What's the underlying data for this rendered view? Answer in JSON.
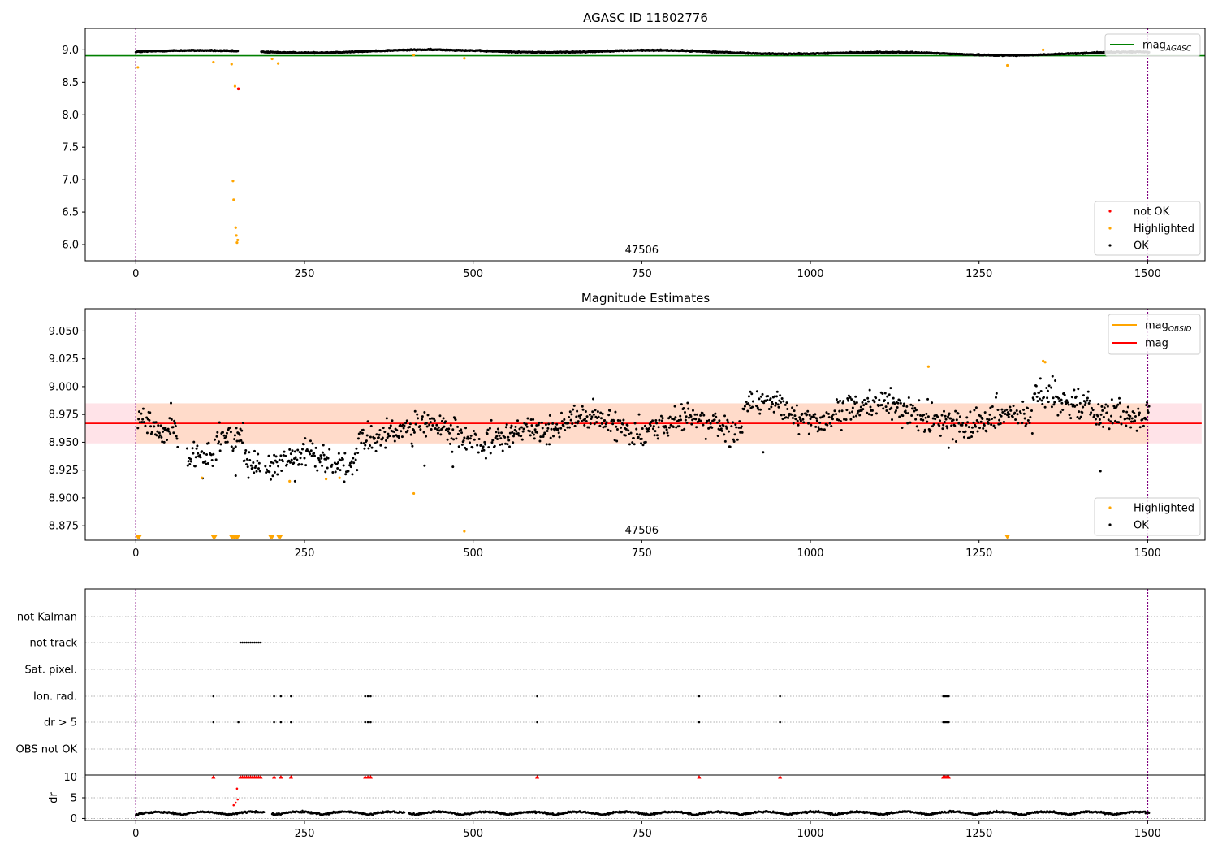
{
  "chart_data": [
    {
      "type": "scatter",
      "title": "AGASC ID 11802776",
      "xlim": [
        -75,
        1585
      ],
      "ylim": [
        5.75,
        9.33
      ],
      "xticks": [
        0,
        250,
        500,
        750,
        1000,
        1250,
        1500
      ],
      "yticks": [
        6.0,
        6.5,
        7.0,
        7.5,
        8.0,
        8.5,
        9.0
      ],
      "xtick_labels": [
        "0",
        "250",
        "500",
        "750",
        "1000",
        "1250",
        "1500"
      ],
      "ytick_labels": [
        "6.0",
        "6.5",
        "7.0",
        "7.5",
        "8.0",
        "8.5",
        "9.0"
      ],
      "annotation": "47506",
      "annotation_x": 750,
      "vlines": [
        0,
        1500
      ],
      "hline": {
        "name": "mag",
        "subscript": "AGASC",
        "y": 8.91,
        "color": "#008000"
      },
      "legend_lines": [
        {
          "name": "mag",
          "subscript": "AGASC",
          "color": "#008000"
        }
      ],
      "legend_points": [
        {
          "name": "not OK",
          "color": "#ff0000"
        },
        {
          "name": "Highlighted",
          "color": "#ffa500"
        },
        {
          "name": "OK",
          "color": "#000000"
        }
      ],
      "ok_points": {
        "x_range": [
          0,
          1502
        ],
        "gaps": [
          [
            152,
            185
          ]
        ],
        "y_base": 8.95,
        "y_trend": 0.04,
        "y_noise": 0.012
      },
      "highlighted_points": [
        [
          3,
          8.73
        ],
        [
          115,
          8.81
        ],
        [
          142,
          8.78
        ],
        [
          144,
          6.98
        ],
        [
          145,
          6.69
        ],
        [
          147,
          8.44
        ],
        [
          148,
          6.26
        ],
        [
          149,
          6.14
        ],
        [
          150,
          6.03
        ],
        [
          151,
          6.07
        ],
        [
          202,
          8.86
        ],
        [
          211,
          8.79
        ],
        [
          412,
          8.92
        ],
        [
          487,
          8.87
        ],
        [
          1292,
          8.76
        ],
        [
          1345,
          9.0
        ]
      ],
      "notok_points": [
        [
          152,
          8.4
        ]
      ],
      "legend_upper_loc": "upper right",
      "legend_lower_loc": "lower right"
    },
    {
      "type": "scatter",
      "title": "Magnitude Estimates",
      "xlim": [
        -75,
        1585
      ],
      "ylim": [
        8.862,
        9.07
      ],
      "xticks": [
        0,
        250,
        500,
        750,
        1000,
        1250,
        1500
      ],
      "yticks": [
        8.875,
        8.9,
        8.925,
        8.95,
        8.975,
        9.0,
        9.025,
        9.05
      ],
      "xtick_labels": [
        "0",
        "250",
        "500",
        "750",
        "1000",
        "1250",
        "1500"
      ],
      "ytick_labels": [
        "8.875",
        "8.900",
        "8.925",
        "8.950",
        "8.975",
        "9.000",
        "9.025",
        "9.050"
      ],
      "annotation": "47506",
      "annotation_x": 750,
      "vlines": [
        0,
        1500
      ],
      "mag_line": {
        "name": "mag",
        "y": 8.967,
        "color": "#ff0000"
      },
      "band_outer": {
        "y0": 8.949,
        "y1": 8.985,
        "x0": -75,
        "x1": 1580,
        "color": "#ffc0cb"
      },
      "band_inner": {
        "y0": 8.949,
        "y1": 8.985,
        "x0": 0,
        "x1": 1502,
        "color": "#ffd8c0"
      },
      "legend_lines": [
        {
          "name": "mag",
          "subscript": "OBSID",
          "color": "#ffa500"
        },
        {
          "name": "mag",
          "subscript": "",
          "color": "#ff0000"
        }
      ],
      "legend_points": [
        {
          "name": "Highlighted",
          "color": "#ffa500"
        },
        {
          "name": "OK",
          "color": "#000000"
        }
      ],
      "ok_points": {
        "x_range": [
          0,
          1502
        ],
        "gaps": [
          [
            70,
            95
          ],
          [
            184,
            196
          ]
        ]
      },
      "highlighted_points": [
        [
          98,
          8.918
        ],
        [
          228,
          8.915
        ],
        [
          282,
          8.917
        ],
        [
          302,
          8.918
        ],
        [
          412,
          8.904
        ],
        [
          487,
          8.87
        ],
        [
          1175,
          9.018
        ],
        [
          1345,
          9.023
        ],
        [
          1348,
          9.022
        ]
      ],
      "offscale_markers_x": [
        3,
        5,
        115,
        117,
        142,
        144,
        146,
        147,
        149,
        150,
        151,
        200,
        202,
        212,
        214,
        1292
      ],
      "legend_upper_loc": "upper right",
      "legend_lower_loc": "lower right"
    },
    {
      "type": "scatter",
      "xlim": [
        -75,
        1585
      ],
      "xticks": [
        0,
        250,
        500,
        750,
        1000,
        1250,
        1500
      ],
      "xtick_labels": [
        "0",
        "250",
        "500",
        "750",
        "1000",
        "1250",
        "1500"
      ],
      "flag_labels": [
        "not Kalman",
        "not track",
        "Sat. pixel.",
        "Ion. rad.",
        "dr > 5",
        "OBS not OK"
      ],
      "flags": {
        "not Kalman": [],
        "not track": [
          155,
          158,
          161,
          164,
          167,
          170,
          173,
          176,
          179,
          182,
          185
        ],
        "Sat. pixel.": [],
        "Ion. rad.": [
          115,
          205,
          215,
          230,
          340,
          344,
          348,
          595,
          835,
          955,
          1197,
          1199,
          1201,
          1203,
          1205
        ],
        "dr > 5": [
          115,
          152,
          205,
          215,
          230,
          340,
          344,
          348,
          595,
          835,
          955,
          1197,
          1199,
          1201,
          1203,
          1205
        ],
        "OBS not OK": []
      },
      "dr_ylabel": "dr",
      "dr_yticks": [
        0,
        5,
        10
      ],
      "dr_ytick_labels": [
        "0",
        "5",
        "10"
      ],
      "dr_ylim": [
        -0.5,
        10.5
      ],
      "dr_clip_x": [
        115,
        155,
        158,
        161,
        164,
        167,
        170,
        173,
        176,
        179,
        182,
        185,
        205,
        215,
        230,
        340,
        344,
        348,
        595,
        835,
        955,
        1197,
        1199,
        1201,
        1203,
        1205
      ],
      "dr_spike_points": [
        [
          145,
          3.2
        ],
        [
          148,
          3.8
        ],
        [
          150,
          7.2
        ],
        [
          151,
          4.6
        ]
      ],
      "vlines": [
        0,
        1500
      ]
    }
  ]
}
